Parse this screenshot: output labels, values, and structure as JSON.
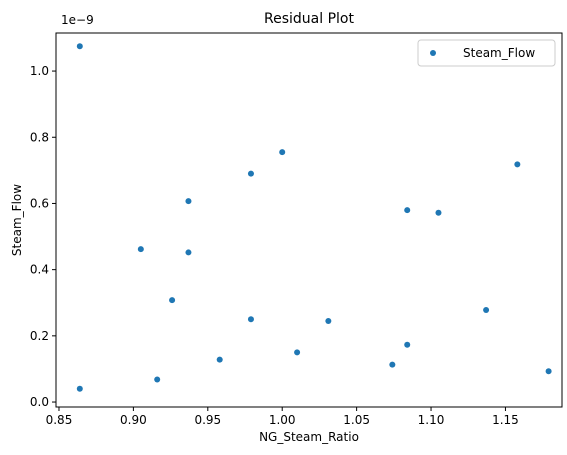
{
  "chart_data": {
    "type": "scatter",
    "title": "Residual Plot",
    "xlabel": "NG_Steam_Ratio",
    "ylabel": "Steam_Flow",
    "y_offset_text": "1e−9",
    "xlim": [
      0.848,
      1.188
    ],
    "ylim": [
      -0.015,
      1.115
    ],
    "xticks": [
      0.85,
      0.9,
      0.95,
      1.0,
      1.05,
      1.1,
      1.15
    ],
    "xtick_labels": [
      "0.85",
      "0.90",
      "0.95",
      "1.00",
      "1.05",
      "1.10",
      "1.15"
    ],
    "yticks": [
      0.0,
      0.2,
      0.4,
      0.6,
      0.8,
      1.0
    ],
    "ytick_labels": [
      "0.0",
      "0.2",
      "0.4",
      "0.6",
      "0.8",
      "1.0"
    ],
    "grid": false,
    "legend_position": "top-right",
    "series": [
      {
        "name": "Steam_Flow",
        "color": "#1f77b4",
        "points": [
          {
            "x": 0.864,
            "y": 1.075
          },
          {
            "x": 0.864,
            "y": 0.04
          },
          {
            "x": 0.905,
            "y": 0.462
          },
          {
            "x": 0.916,
            "y": 0.068
          },
          {
            "x": 0.926,
            "y": 0.308
          },
          {
            "x": 0.937,
            "y": 0.607
          },
          {
            "x": 0.937,
            "y": 0.452
          },
          {
            "x": 0.958,
            "y": 0.128
          },
          {
            "x": 0.979,
            "y": 0.69
          },
          {
            "x": 0.979,
            "y": 0.25
          },
          {
            "x": 1.0,
            "y": 0.755
          },
          {
            "x": 1.01,
            "y": 0.15
          },
          {
            "x": 1.031,
            "y": 0.245
          },
          {
            "x": 1.074,
            "y": 0.113
          },
          {
            "x": 1.084,
            "y": 0.58
          },
          {
            "x": 1.084,
            "y": 0.173
          },
          {
            "x": 1.105,
            "y": 0.572
          },
          {
            "x": 1.137,
            "y": 0.278
          },
          {
            "x": 1.158,
            "y": 0.718
          },
          {
            "x": 1.179,
            "y": 0.093
          }
        ]
      }
    ]
  }
}
